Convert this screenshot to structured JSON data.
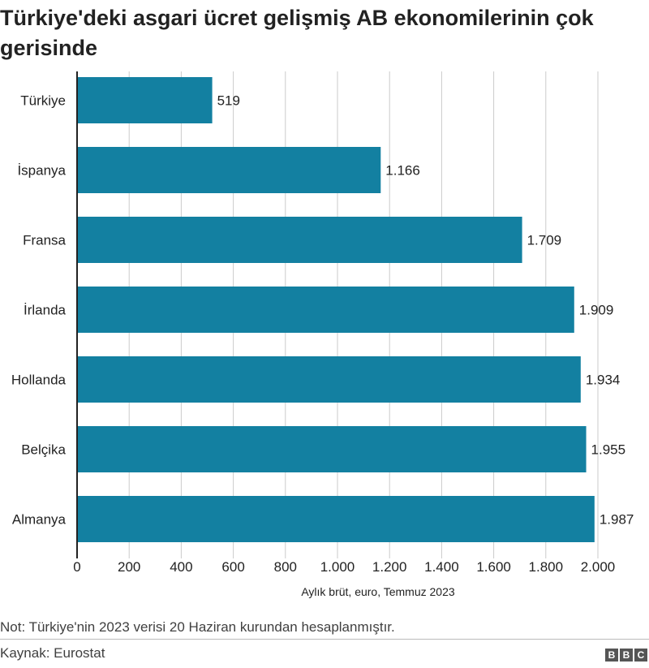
{
  "title": "Türkiye'deki asgari ücret gelişmiş AB ekonomilerinin çok gerisinde",
  "note": "Not: Türkiye'nin 2023 verisi 20 Haziran kurundan hesaplanmıştır.",
  "source": "Kaynak: Eurostat",
  "logo": [
    "B",
    "B",
    "C"
  ],
  "colors": {
    "bar": "#1380A1",
    "grid": "#cbcbcb",
    "axis": "#222222"
  },
  "chart_data": {
    "type": "bar",
    "orientation": "horizontal",
    "categories": [
      "Türkiye",
      "İspanya",
      "Fransa",
      "İrlanda",
      "Hollanda",
      "Belçika",
      "Almanya"
    ],
    "values": [
      519,
      1166,
      1709,
      1909,
      1934,
      1955,
      1987
    ],
    "value_labels": [
      "519",
      "1.166",
      "1.709",
      "1.909",
      "1.934",
      "1.955",
      "1.987"
    ],
    "xlabel": "Aylık brüt, euro, Temmuz 2023",
    "xlim": [
      0,
      2000
    ],
    "xticks": [
      0,
      200,
      400,
      600,
      800,
      1000,
      1200,
      1400,
      1600,
      1800,
      2000
    ],
    "xtick_labels": [
      "0",
      "200",
      "400",
      "600",
      "800",
      "1.000",
      "1.200",
      "1.400",
      "1.600",
      "1.800",
      "2.000"
    ],
    "grid": true
  }
}
